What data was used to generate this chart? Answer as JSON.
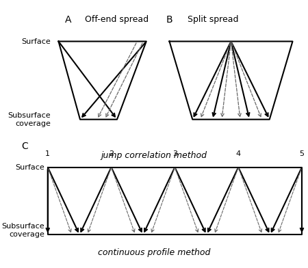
{
  "fig_width": 4.5,
  "fig_height": 3.92,
  "dpi": 100,
  "bg_color": "#ffffff",
  "line_color": "#000000",
  "dashed_color": "#666666",
  "panel_A_label": "A",
  "panel_B_label": "B",
  "panel_C_label": "C",
  "title_A": "Off-end spread",
  "title_B": "Split spread",
  "label_surface": "Surface",
  "label_subsurface": "Subsurface\ncoverage",
  "caption_AB": "jump correlation method",
  "caption_C": "continuous profile method",
  "shot_nums": [
    "1",
    "2",
    "3",
    "4",
    "5"
  ]
}
